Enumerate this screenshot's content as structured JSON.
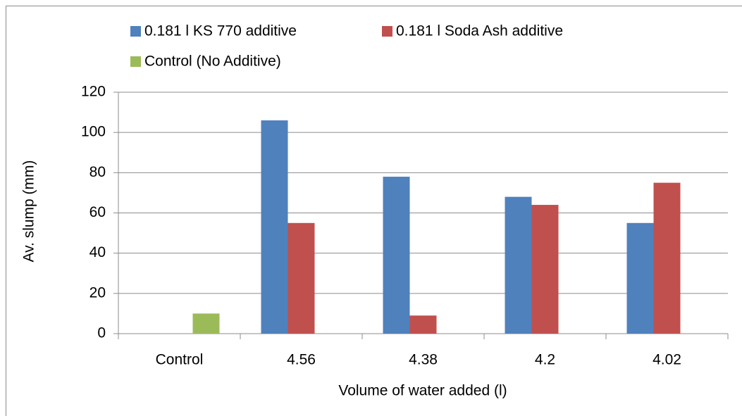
{
  "chart_data": {
    "type": "bar",
    "categories": [
      "Control",
      "4.56",
      "4.38",
      "4.2",
      "4.02"
    ],
    "series": [
      {
        "name": "0.181 l KS 770 additive",
        "color": "#4f81bd",
        "values": [
          null,
          106,
          78,
          68,
          55
        ]
      },
      {
        "name": "0.181 l Soda Ash additive",
        "color": "#c0504d",
        "values": [
          null,
          55,
          9,
          64,
          75
        ]
      },
      {
        "name": "Control (No Additive)",
        "color": "#9bbb59",
        "values": [
          10,
          null,
          null,
          null,
          null
        ]
      }
    ],
    "ylim": [
      0,
      120
    ],
    "yticks": [
      0,
      20,
      40,
      60,
      80,
      100,
      120
    ],
    "grid": true,
    "ylabel": "Av. slump (mm)",
    "xlabel": "Volume of water added (l)",
    "legend": "top"
  }
}
